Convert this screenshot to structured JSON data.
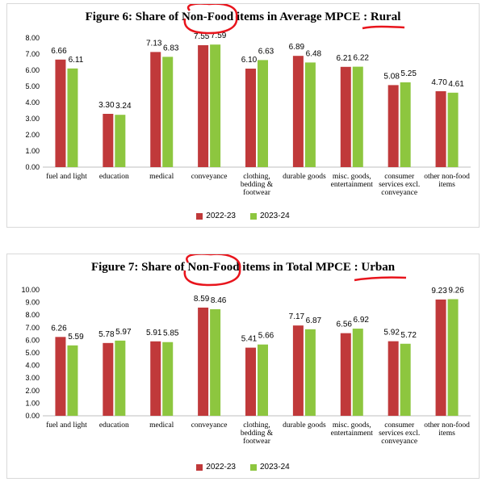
{
  "colors": {
    "series_2022": "#c0393a",
    "series_2023": "#8dc63f",
    "annotation": "#e8141c"
  },
  "chart_data": [
    {
      "type": "bar",
      "title": "Figure  6: Share of Non-Food items in Average MPCE  : Rural",
      "categories": [
        "fuel and light",
        "education",
        "medical",
        "conveyance",
        "clothing, bedding & footwear",
        "durable goods",
        "misc. goods, entertainment",
        "consumer services excl. conveyance",
        "other non-food items"
      ],
      "series": [
        {
          "name": "2022-23",
          "values": [
            6.66,
            3.3,
            7.13,
            7.55,
            6.1,
            6.89,
            6.21,
            5.08,
            4.7
          ]
        },
        {
          "name": "2023-24",
          "values": [
            6.11,
            3.24,
            6.83,
            7.59,
            6.63,
            6.48,
            6.22,
            5.25,
            4.61
          ]
        }
      ],
      "ylim": [
        0,
        8
      ],
      "yticks": [
        "0.00",
        "1.00",
        "2.00",
        "3.00",
        "4.00",
        "5.00",
        "6.00",
        "7.00",
        "8.00"
      ],
      "legend": "bottom",
      "grid": false
    },
    {
      "type": "bar",
      "title": "Figure  7: Share of Non-Food items in Total MPCE  : Urban",
      "categories": [
        "fuel and light",
        "education",
        "medical",
        "conveyance",
        "clothing, bedding & footwear",
        "durable goods",
        "misc. goods, entertainment",
        "consumer services excl. conveyance",
        "other non-food items"
      ],
      "series": [
        {
          "name": "2022-23",
          "values": [
            6.26,
            5.78,
            5.91,
            8.59,
            5.41,
            7.17,
            6.56,
            5.92,
            9.23
          ]
        },
        {
          "name": "2023-24",
          "values": [
            5.59,
            5.97,
            5.85,
            8.46,
            5.66,
            6.87,
            6.92,
            5.72,
            9.26
          ]
        }
      ],
      "ylim": [
        0,
        10
      ],
      "yticks": [
        "0.00",
        "1.00",
        "2.00",
        "3.00",
        "4.00",
        "5.00",
        "6.00",
        "7.00",
        "8.00",
        "9.00",
        "10.00"
      ],
      "legend": "bottom",
      "grid": false
    }
  ]
}
